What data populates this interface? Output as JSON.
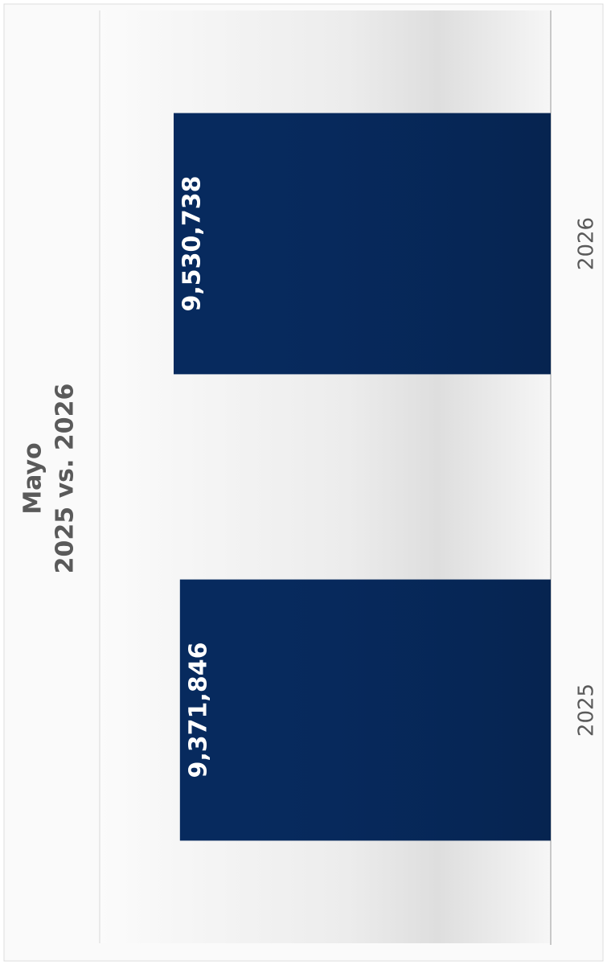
{
  "chart_data": {
    "type": "bar",
    "orientation": "horizontal",
    "title": "Mayo",
    "subtitle": "2025 vs. 2026",
    "categories": [
      "2025",
      "2026"
    ],
    "values": [
      9371846,
      9530738
    ],
    "value_labels": [
      "9,371,846",
      "9,530,738"
    ],
    "color": "#072a5e",
    "ylim": [
      0,
      11400000
    ]
  }
}
